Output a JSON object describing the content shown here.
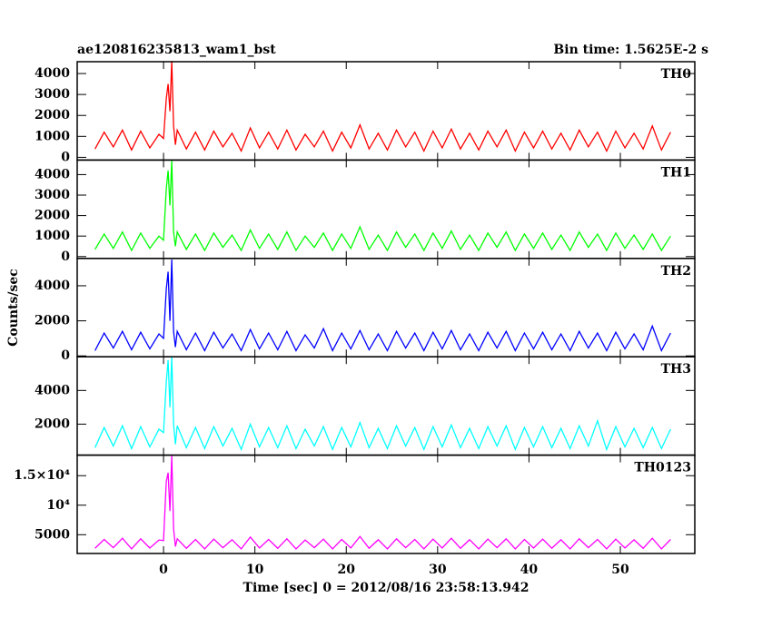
{
  "chart_data": [
    {
      "type": "line",
      "title": "ae120816235813_wam1_bst",
      "subtitle": "Bin time: 1.5625E-2 s",
      "xlim": [
        -9.45,
        58.15
      ],
      "ylim": [
        -130,
        4565
      ],
      "yticks": [
        0,
        1000,
        2000,
        3000,
        4000
      ],
      "x": [
        -7.5,
        -6.5,
        -5.5,
        -4.5,
        -3.5,
        -2.5,
        -1.5,
        -0.5,
        0,
        0.3,
        0.5,
        0.7,
        0.9,
        1.1,
        1.3,
        1.5,
        2.5,
        3.5,
        4.5,
        5.5,
        6.5,
        7.5,
        8.5,
        9.5,
        10.5,
        11.5,
        12.5,
        13.5,
        14.5,
        15.5,
        16.5,
        17.5,
        18.5,
        19.5,
        20.5,
        21.5,
        22.5,
        23.5,
        24.5,
        25.5,
        26.5,
        27.5,
        28.5,
        29.5,
        30.5,
        31.5,
        32.5,
        33.5,
        34.5,
        35.5,
        36.5,
        37.5,
        38.5,
        39.5,
        40.5,
        41.5,
        42.5,
        43.5,
        44.5,
        45.5,
        46.5,
        47.5,
        48.5,
        49.5,
        50.5,
        51.5,
        52.5,
        53.5,
        54.5,
        55.5
      ],
      "series": [
        {
          "name": "TH0",
          "color": "#ff0000",
          "values": [
            400,
            1200,
            500,
            1300,
            350,
            1250,
            450,
            1100,
            900,
            2800,
            3500,
            2200,
            4600,
            1500,
            600,
            1300,
            400,
            1200,
            350,
            1250,
            500,
            1150,
            300,
            1400,
            450,
            1200,
            400,
            1300,
            350,
            1100,
            500,
            1250,
            300,
            1200,
            450,
            1550,
            400,
            1150,
            350,
            1300,
            500,
            1200,
            300,
            1250,
            450,
            1350,
            400,
            1150,
            350,
            1250,
            500,
            1300,
            300,
            1200,
            450,
            1250,
            400,
            1150,
            350,
            1300,
            500,
            1200,
            300,
            1250,
            450,
            1150,
            400,
            1500,
            350,
            1200
          ]
        }
      ]
    },
    {
      "type": "line",
      "xlim": [
        -9.45,
        58.15
      ],
      "ylim": [
        -90,
        4710
      ],
      "yticks": [
        0,
        1000,
        2000,
        3000,
        4000
      ],
      "x": [
        -7.5,
        -6.5,
        -5.5,
        -4.5,
        -3.5,
        -2.5,
        -1.5,
        -0.5,
        0,
        0.3,
        0.5,
        0.7,
        0.9,
        1.1,
        1.3,
        1.5,
        2.5,
        3.5,
        4.5,
        5.5,
        6.5,
        7.5,
        8.5,
        9.5,
        10.5,
        11.5,
        12.5,
        13.5,
        14.5,
        15.5,
        16.5,
        17.5,
        18.5,
        19.5,
        20.5,
        21.5,
        22.5,
        23.5,
        24.5,
        25.5,
        26.5,
        27.5,
        28.5,
        29.5,
        30.5,
        31.5,
        32.5,
        33.5,
        34.5,
        35.5,
        36.5,
        37.5,
        38.5,
        39.5,
        40.5,
        41.5,
        42.5,
        43.5,
        44.5,
        45.5,
        46.5,
        47.5,
        48.5,
        49.5,
        50.5,
        51.5,
        52.5,
        53.5,
        54.5,
        55.5
      ],
      "series": [
        {
          "name": "TH1",
          "color": "#00ff00",
          "values": [
            350,
            1100,
            400,
            1200,
            300,
            1150,
            400,
            1000,
            800,
            3300,
            4200,
            2500,
            4700,
            1200,
            500,
            1200,
            350,
            1100,
            300,
            1150,
            450,
            1050,
            300,
            1300,
            400,
            1100,
            350,
            1200,
            300,
            1000,
            450,
            1150,
            300,
            1100,
            400,
            1450,
            350,
            1050,
            300,
            1200,
            450,
            1100,
            300,
            1150,
            400,
            1250,
            350,
            1050,
            300,
            1150,
            450,
            1200,
            300,
            1100,
            400,
            1150,
            350,
            1050,
            300,
            1200,
            450,
            1100,
            300,
            1150,
            400,
            1050,
            350,
            1100,
            300,
            1000
          ]
        }
      ]
    },
    {
      "type": "line",
      "ylabel": "Counts/sec",
      "xlim": [
        -9.45,
        58.15
      ],
      "ylim": [
        -50,
        5560
      ],
      "yticks": [
        0,
        2000,
        4000
      ],
      "x": [
        -7.5,
        -6.5,
        -5.5,
        -4.5,
        -3.5,
        -2.5,
        -1.5,
        -0.5,
        0,
        0.3,
        0.5,
        0.7,
        0.9,
        1.1,
        1.3,
        1.5,
        2.5,
        3.5,
        4.5,
        5.5,
        6.5,
        7.5,
        8.5,
        9.5,
        10.5,
        11.5,
        12.5,
        13.5,
        14.5,
        15.5,
        16.5,
        17.5,
        18.5,
        19.5,
        20.5,
        21.5,
        22.5,
        23.5,
        24.5,
        25.5,
        26.5,
        27.5,
        28.5,
        29.5,
        30.5,
        31.5,
        32.5,
        33.5,
        34.5,
        35.5,
        36.5,
        37.5,
        38.5,
        39.5,
        40.5,
        41.5,
        42.5,
        43.5,
        44.5,
        45.5,
        46.5,
        47.5,
        48.5,
        49.5,
        50.5,
        51.5,
        52.5,
        53.5,
        54.5,
        55.5
      ],
      "series": [
        {
          "name": "TH2",
          "color": "#0000ff",
          "values": [
            300,
            1300,
            450,
            1400,
            350,
            1350,
            400,
            1250,
            1000,
            3800,
            4800,
            2000,
            5500,
            1400,
            500,
            1400,
            350,
            1300,
            300,
            1350,
            450,
            1250,
            300,
            1500,
            400,
            1300,
            350,
            1400,
            300,
            1200,
            450,
            1550,
            300,
            1300,
            400,
            1450,
            350,
            1250,
            300,
            1400,
            450,
            1300,
            300,
            1350,
            400,
            1450,
            350,
            1250,
            300,
            1350,
            450,
            1400,
            300,
            1300,
            400,
            1350,
            350,
            1250,
            300,
            1400,
            450,
            1300,
            300,
            1350,
            400,
            1250,
            350,
            1700,
            300,
            1300
          ]
        }
      ]
    },
    {
      "type": "line",
      "xlim": [
        -9.45,
        58.15
      ],
      "ylim": [
        160,
        6000
      ],
      "yticks": [
        2000,
        4000
      ],
      "x": [
        -7.5,
        -6.5,
        -5.5,
        -4.5,
        -3.5,
        -2.5,
        -1.5,
        -0.5,
        0,
        0.3,
        0.5,
        0.7,
        0.9,
        1.1,
        1.3,
        1.5,
        2.5,
        3.5,
        4.5,
        5.5,
        6.5,
        7.5,
        8.5,
        9.5,
        10.5,
        11.5,
        12.5,
        13.5,
        14.5,
        15.5,
        16.5,
        17.5,
        18.5,
        19.5,
        20.5,
        21.5,
        22.5,
        23.5,
        24.5,
        25.5,
        26.5,
        27.5,
        28.5,
        29.5,
        30.5,
        31.5,
        32.5,
        33.5,
        34.5,
        35.5,
        36.5,
        37.5,
        38.5,
        39.5,
        40.5,
        41.5,
        42.5,
        43.5,
        44.5,
        45.5,
        46.5,
        47.5,
        48.5,
        49.5,
        50.5,
        51.5,
        52.5,
        53.5,
        54.5,
        55.5
      ],
      "series": [
        {
          "name": "TH3",
          "color": "#00ffff",
          "values": [
            600,
            1800,
            700,
            1900,
            550,
            1850,
            650,
            1700,
            1500,
            4500,
            5800,
            3000,
            6000,
            2000,
            800,
            1900,
            600,
            1800,
            550,
            1850,
            700,
            1750,
            500,
            2000,
            650,
            1800,
            600,
            1900,
            550,
            1700,
            700,
            1850,
            500,
            1800,
            650,
            2100,
            600,
            1750,
            550,
            1900,
            700,
            1800,
            500,
            1850,
            650,
            1950,
            600,
            1750,
            550,
            1850,
            700,
            1900,
            500,
            1800,
            650,
            1850,
            600,
            1750,
            550,
            1900,
            700,
            2200,
            500,
            1850,
            650,
            1750,
            600,
            1800,
            550,
            1700
          ]
        }
      ]
    },
    {
      "type": "line",
      "xlabel": "Time [sec] 0 = 2012/08/16 23:58:13.942",
      "xlim": [
        -9.45,
        58.15
      ],
      "xticks": [
        0,
        10,
        20,
        30,
        40,
        50
      ],
      "ylim": [
        1820,
        18480
      ],
      "yticks": [
        {
          "value": 5000,
          "label": "5000"
        },
        {
          "value": 10000,
          "label": "10⁴"
        },
        {
          "value": 15000,
          "label": "1.5×10⁴"
        }
      ],
      "x": [
        -7.5,
        -6.5,
        -5.5,
        -4.5,
        -3.5,
        -2.5,
        -1.5,
        -0.5,
        0,
        0.3,
        0.5,
        0.7,
        0.9,
        1.1,
        1.3,
        1.5,
        2.5,
        3.5,
        4.5,
        5.5,
        6.5,
        7.5,
        8.5,
        9.5,
        10.5,
        11.5,
        12.5,
        13.5,
        14.5,
        15.5,
        16.5,
        17.5,
        18.5,
        19.5,
        20.5,
        21.5,
        22.5,
        23.5,
        24.5,
        25.5,
        26.5,
        27.5,
        28.5,
        29.5,
        30.5,
        31.5,
        32.5,
        33.5,
        34.5,
        35.5,
        36.5,
        37.5,
        38.5,
        39.5,
        40.5,
        41.5,
        42.5,
        43.5,
        44.5,
        45.5,
        46.5,
        47.5,
        48.5,
        49.5,
        50.5,
        51.5,
        52.5,
        53.5,
        54.5,
        55.5
      ],
      "series": [
        {
          "name": "TH0123",
          "color": "#ff00ff",
          "values": [
            2700,
            4200,
            2800,
            4400,
            2600,
            4300,
            2750,
            4100,
            4000,
            14000,
            15500,
            9000,
            18400,
            6000,
            3000,
            4300,
            2700,
            4200,
            2600,
            4250,
            2800,
            4150,
            2600,
            4600,
            2750,
            4200,
            2700,
            4300,
            2600,
            4100,
            2800,
            4250,
            2600,
            4200,
            2750,
            4700,
            2700,
            4150,
            2600,
            4300,
            2800,
            4200,
            2600,
            4250,
            2750,
            4400,
            2700,
            4150,
            2600,
            4250,
            2800,
            4300,
            2600,
            4200,
            2750,
            4250,
            2700,
            4150,
            2600,
            4300,
            2800,
            4200,
            2600,
            4250,
            2750,
            4150,
            2700,
            4400,
            2600,
            4200
          ]
        }
      ]
    }
  ]
}
